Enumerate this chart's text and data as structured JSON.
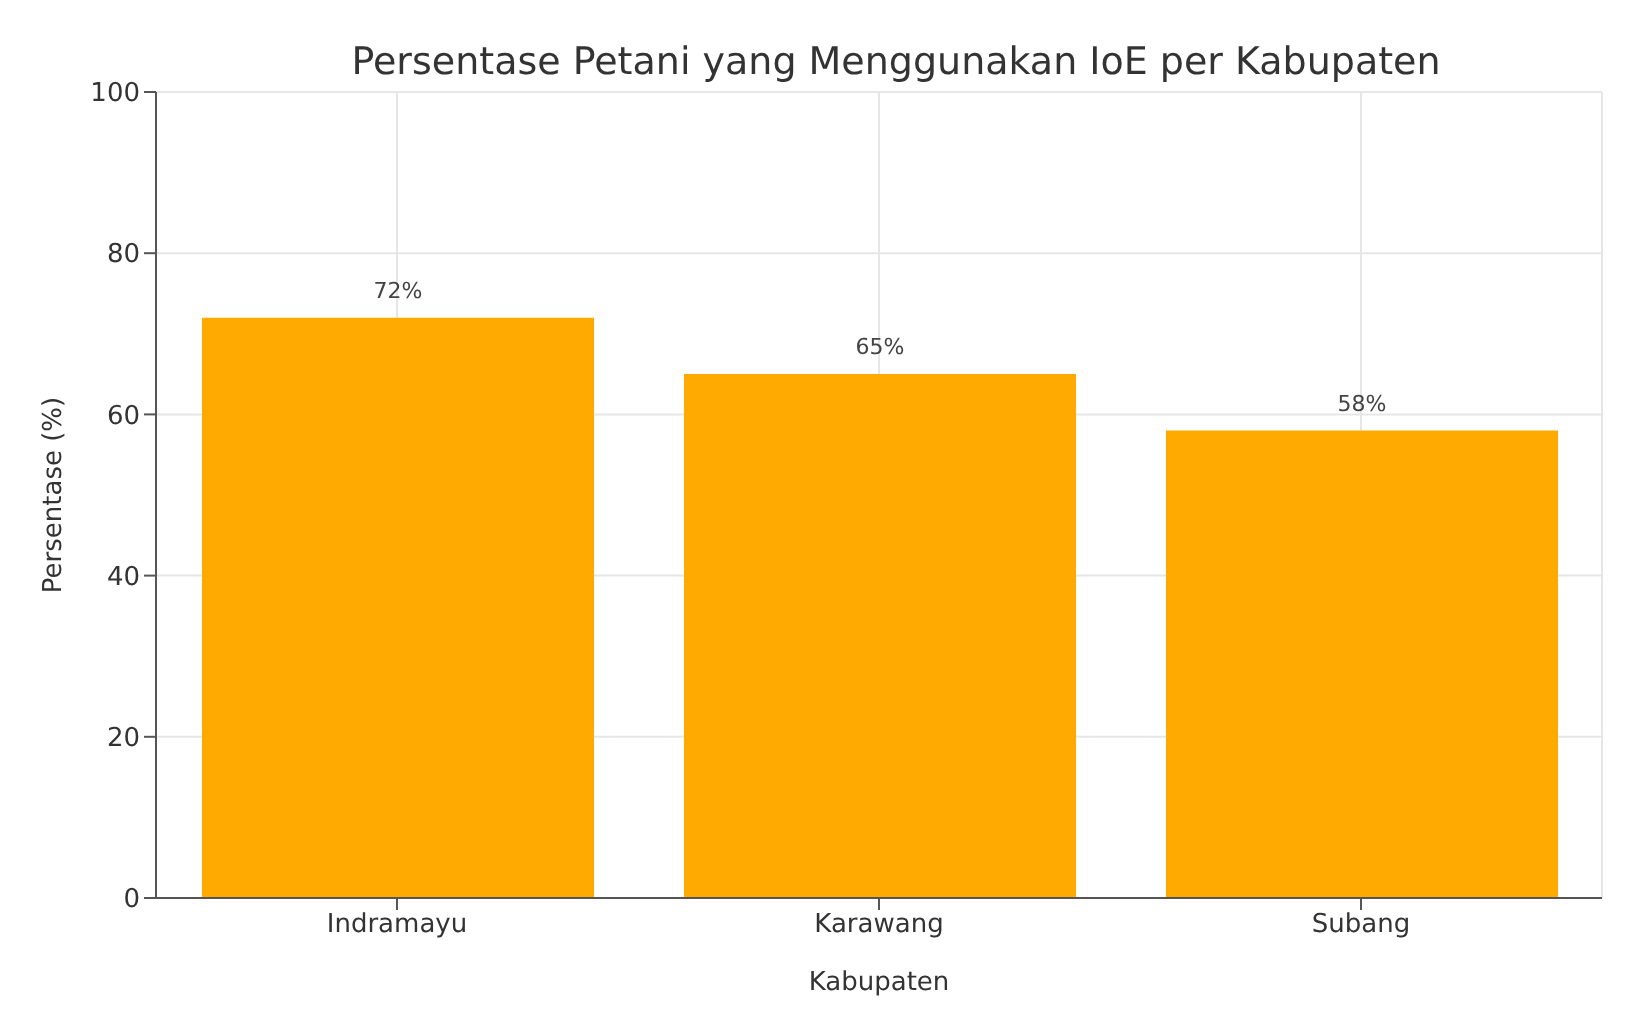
{
  "chart_data": {
    "type": "bar",
    "title": "Persentase Petani yang Menggunakan IoE per Kabupaten",
    "xlabel": "Kabupaten",
    "ylabel": "Persentase (%)",
    "categories": [
      "Indramayu",
      "Karawang",
      "Subang"
    ],
    "values": [
      72,
      65,
      58
    ],
    "value_labels": [
      "72%",
      "65%",
      "58%"
    ],
    "color": "#ffaa00",
    "ylim": [
      0,
      100
    ],
    "yticks": [
      0,
      20,
      40,
      60,
      80,
      100
    ],
    "grid": true
  }
}
